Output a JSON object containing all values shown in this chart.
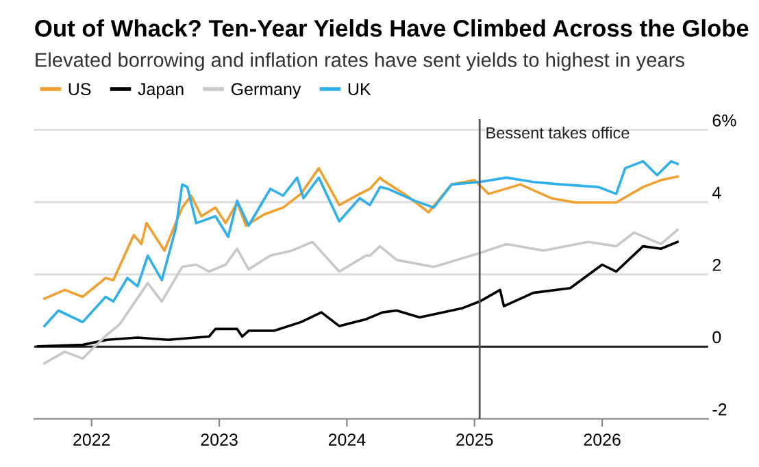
{
  "chart_data": {
    "type": "line",
    "title": "Out of Whack? Ten-Year Yields Have Climbed Across the Globe",
    "subtitle": "Elevated borrowing and inflation rates have sent yields to highest in years",
    "legend": "top left",
    "grid": "y",
    "marker": "none",
    "line_style": "solid",
    "xlim": [
      2021.55,
      2026.83
    ],
    "xticks": [
      2022,
      2023,
      2024,
      2025,
      2026
    ],
    "ylim": [
      -2,
      6.3
    ],
    "yticks": [
      {
        "value": 6,
        "label": "6%"
      },
      4,
      2,
      0,
      -2
    ],
    "ref_lines": [
      {
        "axis": "x",
        "value": 2025.04,
        "label": "Bessent takes office",
        "color": "#555555"
      },
      {
        "axis": "y",
        "value": 0,
        "label": null,
        "color": "#222222"
      }
    ],
    "series": [
      {
        "name": "US",
        "color": "#f0a030",
        "x": [
          2021.63,
          2021.79,
          2021.93,
          2022.11,
          2022.17,
          2022.33,
          2022.39,
          2022.43,
          2022.57,
          2022.71,
          2022.78,
          2022.86,
          2022.97,
          2023.05,
          2023.14,
          2023.21,
          2023.35,
          2023.5,
          2023.64,
          2023.78,
          2023.94,
          2024.1,
          2024.18,
          2024.26,
          2024.28,
          2024.47,
          2024.64,
          2024.82,
          2025.0,
          2025.11,
          2025.36,
          2025.6,
          2025.79,
          2026.11,
          2026.32,
          2026.46,
          2026.59
        ],
        "values": [
          1.33,
          1.57,
          1.38,
          1.9,
          1.84,
          3.09,
          2.84,
          3.42,
          2.66,
          3.85,
          4.18,
          3.61,
          3.85,
          3.42,
          3.99,
          3.35,
          3.66,
          3.85,
          4.23,
          4.94,
          3.92,
          4.23,
          4.37,
          4.68,
          4.61,
          4.18,
          3.72,
          4.49,
          4.61,
          4.23,
          4.49,
          4.11,
          3.99,
          3.99,
          4.42,
          4.61,
          4.71
        ]
      },
      {
        "name": "Japan",
        "color": "#000000",
        "x": [
          2021.58,
          2021.93,
          2022.12,
          2022.36,
          2022.6,
          2022.92,
          2022.97,
          2023.14,
          2023.18,
          2023.23,
          2023.43,
          2023.64,
          2023.8,
          2023.94,
          2024.15,
          2024.28,
          2024.39,
          2024.57,
          2024.9,
          2025.04,
          2025.2,
          2025.23,
          2025.46,
          2025.75,
          2026.0,
          2026.11,
          2026.32,
          2026.46,
          2026.59
        ],
        "values": [
          0.01,
          0.05,
          0.19,
          0.25,
          0.19,
          0.28,
          0.49,
          0.49,
          0.28,
          0.44,
          0.44,
          0.68,
          0.95,
          0.57,
          0.76,
          0.95,
          1.0,
          0.81,
          1.06,
          1.25,
          1.57,
          1.12,
          1.49,
          1.62,
          2.27,
          2.08,
          2.78,
          2.71,
          2.9
        ]
      },
      {
        "name": "Germany",
        "color": "#c8c8c8",
        "x": [
          2021.63,
          2021.79,
          2021.93,
          2022.11,
          2022.22,
          2022.32,
          2022.44,
          2022.55,
          2022.71,
          2022.82,
          2022.92,
          2023.05,
          2023.14,
          2023.23,
          2023.4,
          2023.57,
          2023.73,
          2023.94,
          2024.15,
          2024.18,
          2024.26,
          2024.39,
          2024.68,
          2025.04,
          2025.25,
          2025.54,
          2025.89,
          2026.11,
          2026.25,
          2026.46,
          2026.59
        ],
        "values": [
          -0.46,
          -0.14,
          -0.33,
          0.3,
          0.62,
          1.14,
          1.76,
          1.25,
          2.21,
          2.27,
          2.08,
          2.27,
          2.71,
          2.14,
          2.52,
          2.66,
          2.9,
          2.08,
          2.52,
          2.52,
          2.78,
          2.4,
          2.21,
          2.59,
          2.84,
          2.66,
          2.9,
          2.78,
          3.16,
          2.84,
          3.23
        ]
      },
      {
        "name": "UK",
        "color": "#30b0e8",
        "x": [
          2021.63,
          2021.74,
          2021.93,
          2022.11,
          2022.17,
          2022.28,
          2022.36,
          2022.44,
          2022.55,
          2022.66,
          2022.71,
          2022.75,
          2022.82,
          2022.97,
          2023.07,
          2023.14,
          2023.23,
          2023.4,
          2023.5,
          2023.61,
          2023.66,
          2023.78,
          2023.94,
          2024.1,
          2024.18,
          2024.26,
          2024.32,
          2024.53,
          2024.68,
          2024.82,
          2025.04,
          2025.25,
          2025.46,
          2025.68,
          2025.97,
          2026.11,
          2026.18,
          2026.32,
          2026.43,
          2026.54,
          2026.59
        ],
        "values": [
          0.57,
          1.0,
          0.68,
          1.38,
          1.25,
          1.9,
          1.67,
          2.52,
          1.84,
          3.28,
          4.49,
          4.42,
          3.42,
          3.61,
          3.04,
          4.04,
          3.35,
          4.37,
          4.18,
          4.68,
          4.11,
          4.68,
          3.47,
          4.11,
          3.92,
          4.42,
          4.37,
          4.04,
          3.85,
          4.49,
          4.56,
          4.68,
          4.56,
          4.49,
          4.42,
          4.23,
          4.94,
          5.13,
          4.75,
          5.13,
          5.06
        ]
      }
    ]
  }
}
